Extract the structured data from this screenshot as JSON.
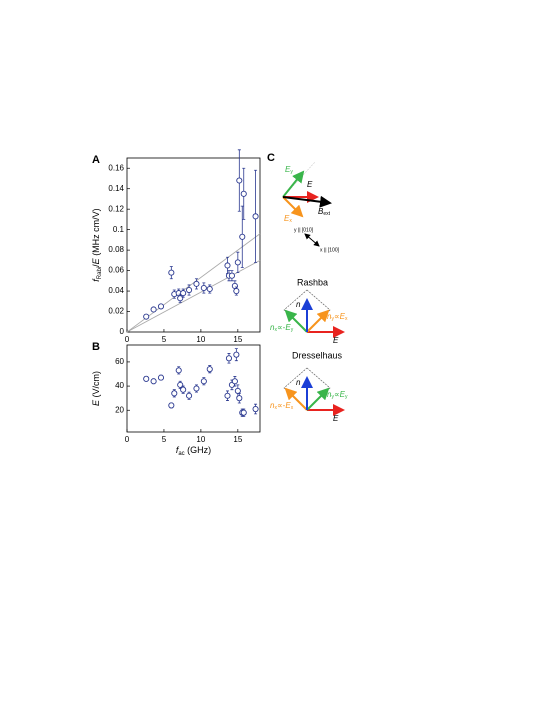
{
  "chart_data": [
    {
      "type": "scatter",
      "panel": "A",
      "x": [
        2.6,
        3.6,
        4.6,
        6.0,
        6.4,
        7.0,
        7.2,
        7.6,
        8.4,
        9.4,
        10.4,
        11.2,
        13.6,
        13.8,
        14.2,
        14.6,
        14.8,
        15.0,
        15.2,
        15.6,
        15.8,
        17.4
      ],
      "values": [
        0.015,
        0.022,
        0.025,
        0.058,
        0.037,
        0.038,
        0.033,
        0.038,
        0.041,
        0.047,
        0.043,
        0.042,
        0.065,
        0.055,
        0.055,
        0.045,
        0.04,
        0.068,
        0.148,
        0.093,
        0.135,
        0.113
      ],
      "errors": [
        0.002,
        0.002,
        0.002,
        0.006,
        0.004,
        0.004,
        0.004,
        0.004,
        0.005,
        0.005,
        0.005,
        0.004,
        0.008,
        0.005,
        0.005,
        0.005,
        0.004,
        0.01,
        0.03,
        0.03,
        0.025,
        0.045
      ],
      "color": "#2b3990",
      "xlim": [
        0,
        18
      ],
      "ylim": [
        0,
        0.17
      ],
      "xticks": [
        0,
        5,
        10,
        15
      ],
      "yticks": [
        0,
        0.02,
        0.04,
        0.06,
        0.08,
        0.1,
        0.12,
        0.14,
        0.16
      ],
      "ylabel": [
        {
          "text": "f",
          "style": "italic"
        },
        {
          "text": "Rabi",
          "style": "sub"
        },
        {
          "text": "/",
          "style": "normal"
        },
        {
          "text": "E",
          "style": "italic"
        },
        {
          "text": " (MHz cm/V)",
          "style": "normal"
        }
      ],
      "lines": [
        {
          "color": "#aaaaaa",
          "x": [
            0,
            18
          ],
          "values": [
            0,
            0.096
          ]
        },
        {
          "color": "#aaaaaa",
          "x": [
            0,
            18
          ],
          "values": [
            0,
            0.07
          ]
        }
      ]
    },
    {
      "type": "scatter",
      "panel": "B",
      "x": [
        2.6,
        3.6,
        4.6,
        6.0,
        6.4,
        7.0,
        7.2,
        7.6,
        8.4,
        9.4,
        10.4,
        11.2,
        13.6,
        13.8,
        14.2,
        14.6,
        14.8,
        15.0,
        15.2,
        15.6,
        15.8,
        17.4
      ],
      "values": [
        46,
        44,
        47,
        24,
        34,
        53,
        41,
        37,
        32,
        38,
        44,
        54,
        32,
        63,
        41,
        44,
        66,
        36,
        30,
        18,
        18,
        21
      ],
      "errors": [
        2,
        2,
        2,
        2,
        3,
        3,
        3,
        3,
        3,
        3,
        3,
        3,
        4,
        4,
        4,
        4,
        5,
        5,
        4,
        3,
        3,
        4
      ],
      "color": "#2b3990",
      "xlim": [
        0,
        18
      ],
      "ylim": [
        2,
        74
      ],
      "xticks": [
        0,
        5,
        10,
        15
      ],
      "yticks": [
        20,
        40,
        60
      ],
      "ylabel": [
        {
          "text": "E",
          "style": "italic"
        },
        {
          "text": " (V/cm)",
          "style": "normal"
        }
      ],
      "xlabel": [
        {
          "text": "f",
          "style": "italic"
        },
        {
          "text": "ac",
          "style": "sub"
        },
        {
          "text": " (GHz)",
          "style": "normal"
        }
      ]
    }
  ],
  "diagram": {
    "panel": "C",
    "top": {
      "ey": {
        "main": "E",
        "sub": "y"
      },
      "e": "E",
      "ex": {
        "main": "E",
        "sub": "x"
      },
      "b": {
        "main": "B",
        "sub": "ext"
      },
      "yaxis": "y || [010]",
      "xaxis": "x || [100]"
    },
    "rashba": {
      "title": "Rashba",
      "n": "n",
      "e": "E",
      "left": {
        "main": "n",
        "sub": "x",
        "rel": "∝-",
        "main2": "E",
        "sub2": "y"
      },
      "right": {
        "main": "n",
        "sub": "y",
        "rel": "∝",
        "main2": "E",
        "sub2": "x"
      }
    },
    "dresselhaus": {
      "title": "Dresselhaus",
      "n": "n",
      "e": "E",
      "left": {
        "main": "n",
        "sub": "x",
        "rel": "∝-",
        "main2": "E",
        "sub2": "x"
      },
      "right": {
        "main": "n",
        "sub": "y",
        "rel": "∝",
        "main2": "E",
        "sub2": "y"
      }
    }
  }
}
